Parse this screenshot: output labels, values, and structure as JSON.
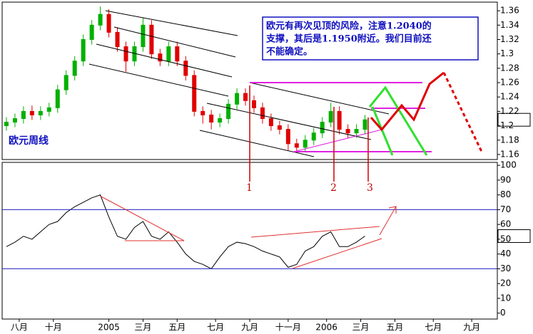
{
  "chart_data": [
    {
      "type": "candlestick",
      "label": "欧元周线",
      "note": [
        "欧元有再次见顶的风险，注意1.2040的",
        "支撑，其后是1.1950附近。我们目前还",
        "不能确定。"
      ],
      "markers": [
        "1",
        "2",
        "3"
      ],
      "up_color": "#00b000",
      "down_color": "#e00000",
      "x": [
        1,
        3,
        5,
        7,
        9,
        11,
        13,
        15,
        17,
        19,
        21,
        23,
        25,
        27,
        29,
        31,
        33,
        35,
        37,
        39,
        41,
        43,
        45,
        47,
        49,
        51,
        53,
        55,
        57,
        59,
        61,
        63,
        65,
        67,
        69,
        71,
        73,
        75,
        77,
        79,
        81,
        83,
        85
      ],
      "ohlc": [
        [
          1.2,
          1.212,
          1.193,
          1.205
        ],
        [
          1.205,
          1.217,
          1.198,
          1.21
        ],
        [
          1.21,
          1.227,
          1.203,
          1.22
        ],
        [
          1.22,
          1.228,
          1.208,
          1.215
        ],
        [
          1.215,
          1.227,
          1.208,
          1.22
        ],
        [
          1.22,
          1.232,
          1.213,
          1.225
        ],
        [
          1.225,
          1.257,
          1.218,
          1.25
        ],
        [
          1.25,
          1.277,
          1.243,
          1.27
        ],
        [
          1.27,
          1.297,
          1.263,
          1.29
        ],
        [
          1.29,
          1.327,
          1.283,
          1.32
        ],
        [
          1.32,
          1.347,
          1.313,
          1.34
        ],
        [
          1.34,
          1.366,
          1.333,
          1.355
        ],
        [
          1.355,
          1.362,
          1.323,
          1.33
        ],
        [
          1.33,
          1.337,
          1.303,
          1.31
        ],
        [
          1.31,
          1.317,
          1.275,
          1.29
        ],
        [
          1.29,
          1.317,
          1.283,
          1.31
        ],
        [
          1.31,
          1.35,
          1.303,
          1.34
        ],
        [
          1.34,
          1.347,
          1.293,
          1.3
        ],
        [
          1.3,
          1.307,
          1.283,
          1.29
        ],
        [
          1.29,
          1.317,
          1.283,
          1.31
        ],
        [
          1.31,
          1.317,
          1.283,
          1.29
        ],
        [
          1.29,
          1.297,
          1.263,
          1.27
        ],
        [
          1.27,
          1.277,
          1.213,
          1.22
        ],
        [
          1.22,
          1.227,
          1.203,
          1.215
        ],
        [
          1.215,
          1.222,
          1.195,
          1.205
        ],
        [
          1.205,
          1.217,
          1.198,
          1.21
        ],
        [
          1.21,
          1.237,
          1.203,
          1.23
        ],
        [
          1.23,
          1.252,
          1.223,
          1.245
        ],
        [
          1.245,
          1.252,
          1.228,
          1.235
        ],
        [
          1.235,
          1.242,
          1.218,
          1.225
        ],
        [
          1.225,
          1.232,
          1.203,
          1.21
        ],
        [
          1.21,
          1.217,
          1.193,
          1.2
        ],
        [
          1.2,
          1.207,
          1.188,
          1.195
        ],
        [
          1.195,
          1.202,
          1.165,
          1.175
        ],
        [
          1.175,
          1.182,
          1.163,
          1.17
        ],
        [
          1.17,
          1.187,
          1.163,
          1.18
        ],
        [
          1.18,
          1.197,
          1.173,
          1.19
        ],
        [
          1.19,
          1.212,
          1.183,
          1.205
        ],
        [
          1.205,
          1.232,
          1.198,
          1.22
        ],
        [
          1.22,
          1.227,
          1.188,
          1.195
        ],
        [
          1.195,
          1.202,
          1.183,
          1.19
        ],
        [
          1.19,
          1.202,
          1.183,
          1.195
        ],
        [
          1.195,
          1.215,
          1.188,
          1.2083
        ]
      ],
      "xlim": [
        0,
        116
      ],
      "ylim": [
        1.153,
        1.372
      ],
      "yticks": [
        1.16,
        1.18,
        1.2,
        1.22,
        1.24,
        1.26,
        1.28,
        1.3,
        1.32,
        1.34,
        1.36
      ]
    },
    {
      "type": "line",
      "color": "#000000",
      "x": [
        1,
        3,
        5,
        7,
        9,
        11,
        13,
        15,
        17,
        19,
        21,
        23,
        25,
        27,
        29,
        31,
        33,
        35,
        37,
        39,
        41,
        43,
        45,
        47,
        49,
        51,
        53,
        55,
        57,
        59,
        61,
        63,
        65,
        67,
        69,
        71,
        73,
        75,
        77,
        79,
        81,
        83,
        85
      ],
      "values": [
        45,
        48,
        52,
        50,
        55,
        60,
        62,
        68,
        72,
        75,
        78,
        80,
        65,
        52,
        50,
        58,
        62,
        52,
        50,
        55,
        48,
        40,
        35,
        33,
        30,
        38,
        45,
        48,
        47,
        45,
        42,
        40,
        38,
        31,
        33,
        42,
        45,
        52,
        55,
        45,
        45,
        48,
        52.13
      ],
      "reference_lines": [
        30,
        70
      ],
      "reference_color": "#2020c0",
      "xlim": [
        0,
        116
      ],
      "ylim": [
        -4,
        102
      ],
      "yticks": [
        0,
        10,
        20,
        30,
        40,
        50,
        60,
        70,
        80,
        90,
        100
      ],
      "xticks": [
        {
          "value": 4,
          "label": "八月"
        },
        {
          "value": 12,
          "label": "十月"
        },
        {
          "value": 25,
          "label": "2005"
        },
        {
          "value": 33,
          "label": "三月"
        },
        {
          "value": 41,
          "label": "五月"
        },
        {
          "value": 50,
          "label": "七月"
        },
        {
          "value": 58,
          "label": "九月"
        },
        {
          "value": 67,
          "label": "十一月"
        },
        {
          "value": 76,
          "label": "2006"
        },
        {
          "value": 84,
          "label": "三月"
        },
        {
          "value": 92,
          "label": "五月"
        },
        {
          "value": 101,
          "label": "七月"
        },
        {
          "value": 110,
          "label": "九月"
        }
      ]
    }
  ]
}
